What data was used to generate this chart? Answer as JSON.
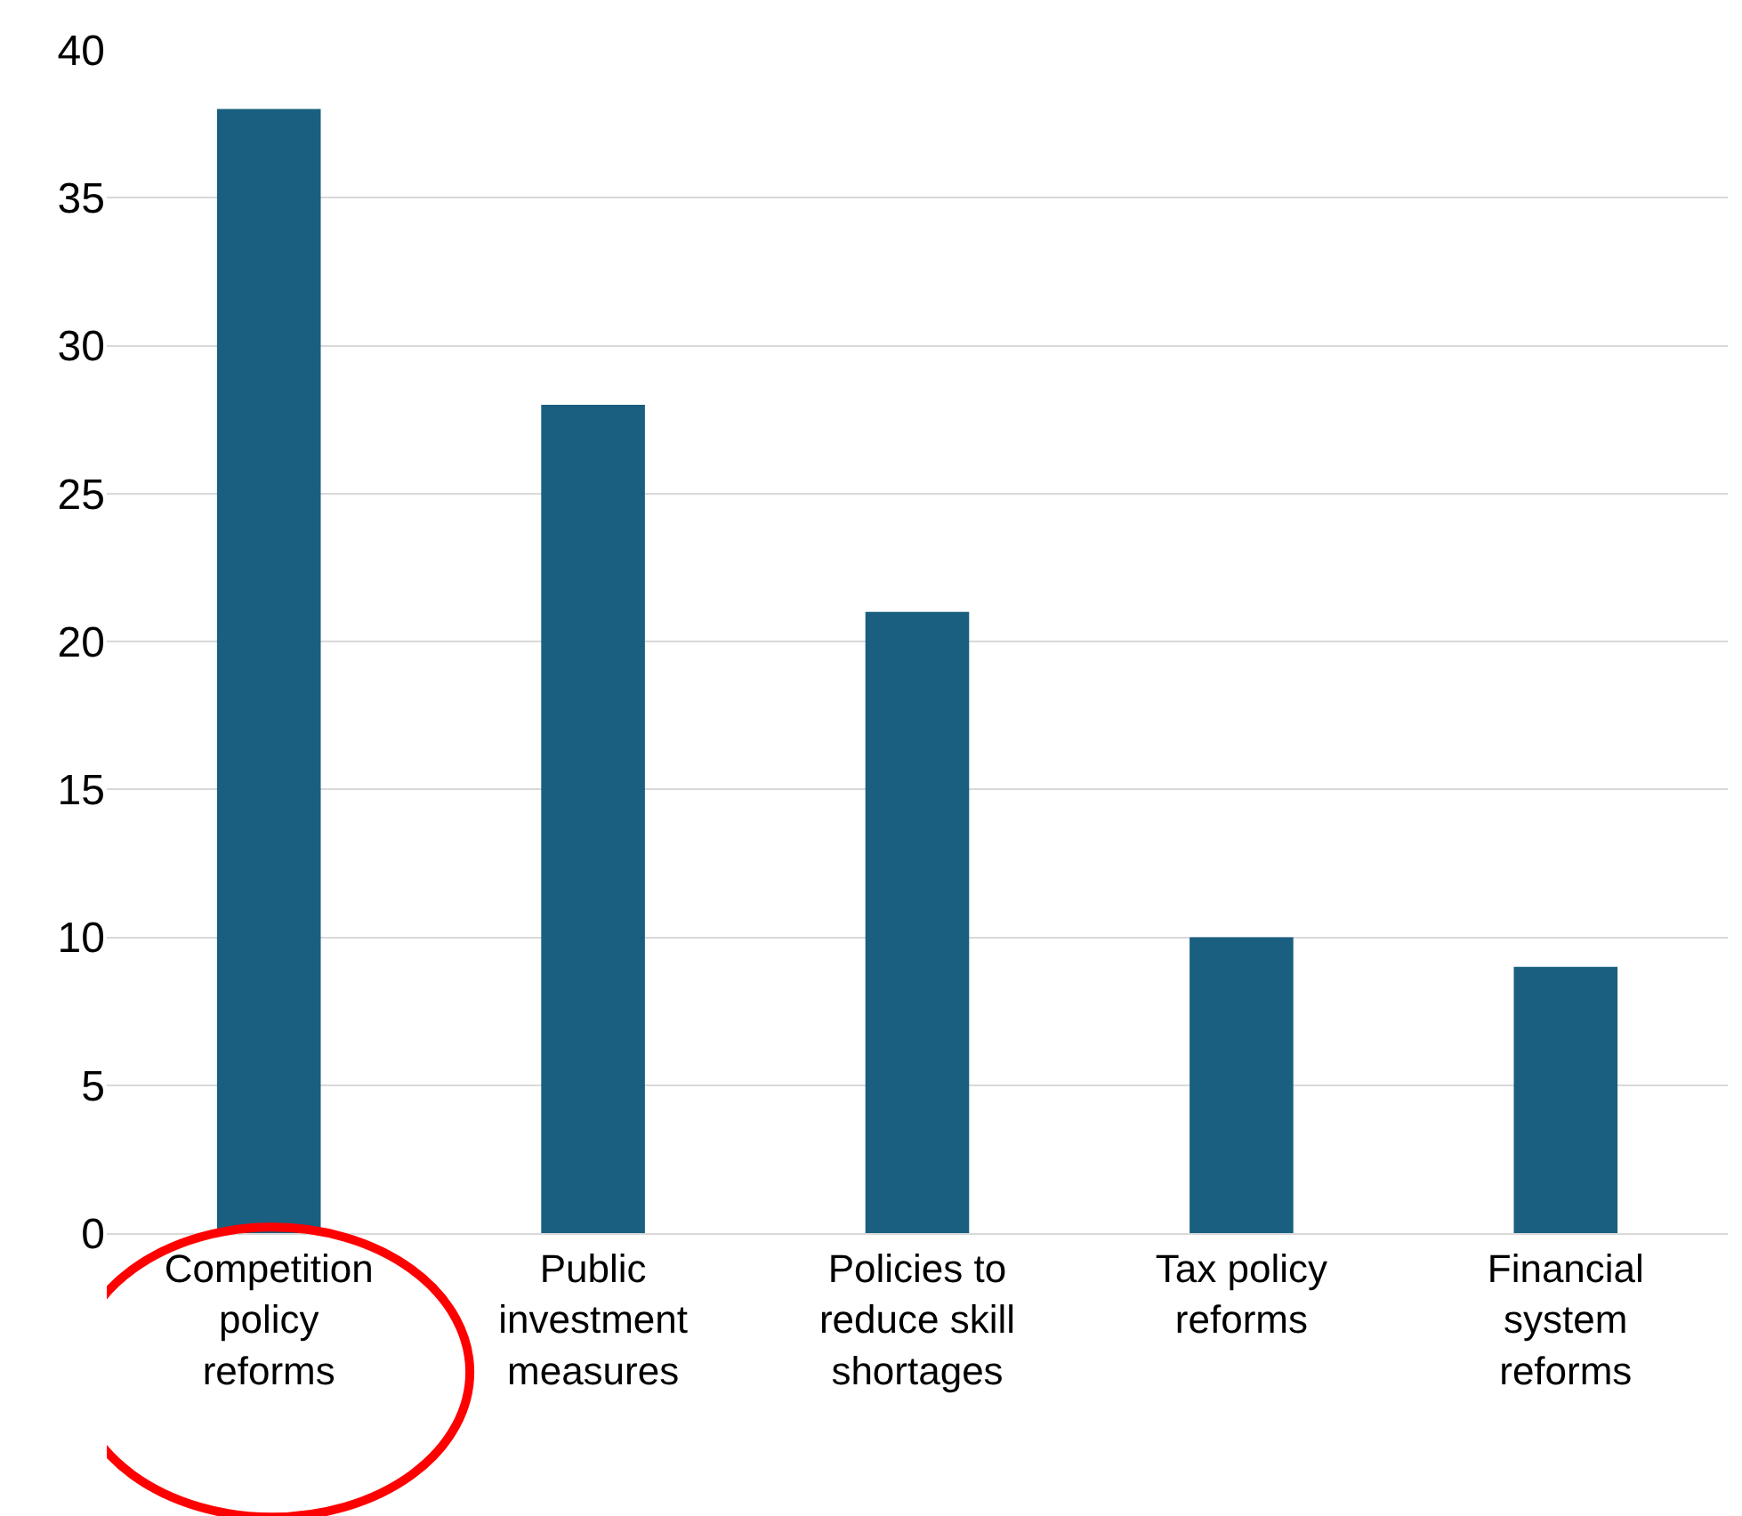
{
  "chart_data": {
    "type": "bar",
    "categories": [
      "Competition policy reforms",
      "Public investment measures",
      "Policies to reduce skill shortages",
      "Tax policy reforms",
      "Financial system reforms"
    ],
    "values": [
      38,
      28,
      21,
      10,
      9
    ],
    "color": "#1a5f80",
    "ylim": [
      0,
      40
    ],
    "yticks": [
      0,
      5,
      10,
      15,
      20,
      25,
      30,
      35,
      40
    ],
    "grid": "y",
    "legend": false
  }
}
